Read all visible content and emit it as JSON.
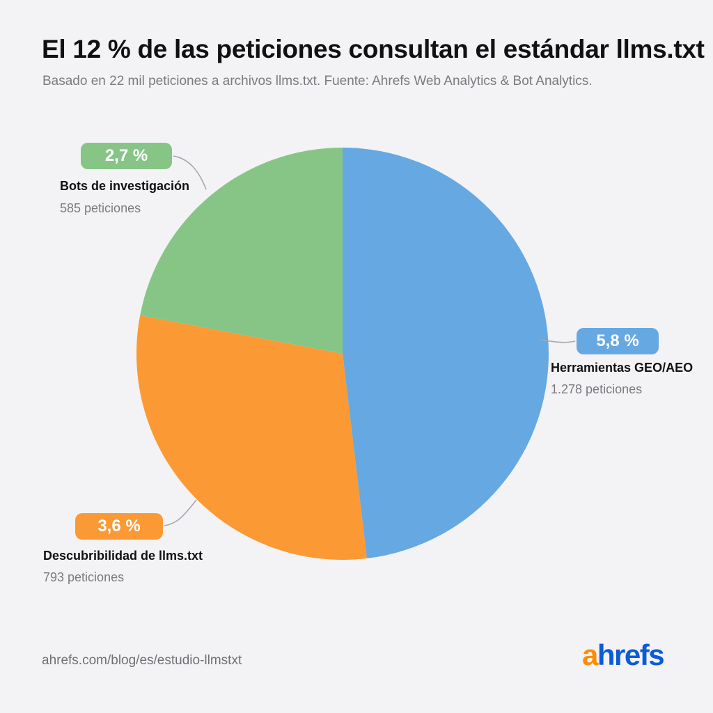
{
  "header": {
    "title": "El 12 % de las peticiones consultan el estándar llms.txt",
    "subtitle": "Basado en 22 mil peticiones a archivos llms.txt. Fuente: Ahrefs Web Analytics & Bot Analytics."
  },
  "chart_data": {
    "type": "pie",
    "slices": [
      {
        "label": "Herramientas GEO/AEO",
        "value": 1278,
        "percent_label": "5,8 %",
        "count_label": "1.278 peticiones",
        "color": "#66a8e2"
      },
      {
        "label": "Descubribilidad de llms.txt",
        "value": 793,
        "percent_label": "3,6 %",
        "count_label": "793 peticiones",
        "color": "#fb9a34"
      },
      {
        "label": "Bots de investigación",
        "value": 585,
        "percent_label": "2,7 %",
        "count_label": "585 peticiones",
        "color": "#87c587"
      }
    ]
  },
  "footer": {
    "url": "ahrefs.com/blog/es/estudio-llmstxt",
    "logo_first": "a",
    "logo_rest": "hrefs"
  },
  "colors": {
    "background": "#f3f3f5",
    "leader_line": "#a7a7ad",
    "logo_orange": "#ff8c00",
    "logo_blue": "#0c5bd6"
  }
}
